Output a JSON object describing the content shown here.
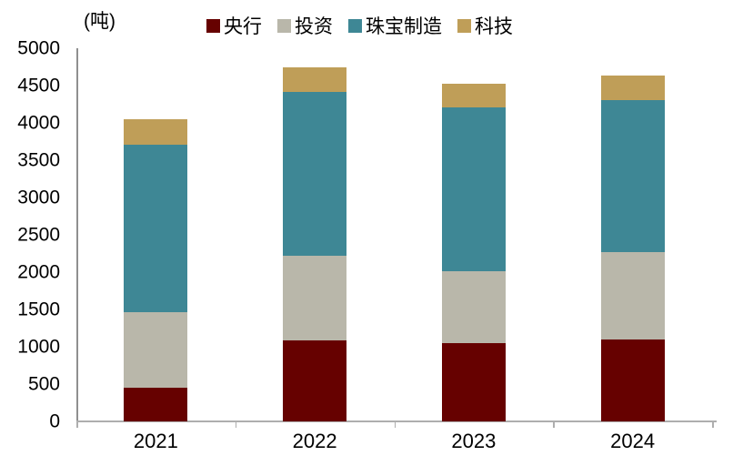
{
  "chart_data": {
    "type": "bar",
    "stacked": true,
    "title": "",
    "ylabel": "(吨)",
    "xlabel": "",
    "categories": [
      "2021",
      "2022",
      "2023",
      "2024"
    ],
    "series": [
      {
        "key": "central-bank",
        "name": "央行",
        "color": "#660100",
        "values": [
          450,
          1080,
          1045,
          1090
        ]
      },
      {
        "key": "investment",
        "name": "投资",
        "color": "#B9B7AA",
        "values": [
          1010,
          1135,
          965,
          1175
        ]
      },
      {
        "key": "jewelry-manufacturing",
        "name": "珠宝制造",
        "color": "#3E8795",
        "values": [
          2245,
          2195,
          2195,
          2035
        ]
      },
      {
        "key": "technology",
        "name": "科技",
        "color": "#BF9E58",
        "values": [
          345,
          330,
          325,
          330
        ]
      }
    ],
    "totals": [
      4050,
      4740,
      4530,
      4630
    ],
    "ylim": [
      0,
      5000
    ],
    "yticks": [
      0,
      500,
      1000,
      1500,
      2000,
      2500,
      3000,
      3500,
      4000,
      4500,
      5000
    ],
    "grid": false,
    "legend_position": "top",
    "colors": {
      "axis_line": "#8F8F8F",
      "baseline": "#AEAEAE",
      "text": "#000000",
      "background": "#FFFFFF"
    }
  }
}
